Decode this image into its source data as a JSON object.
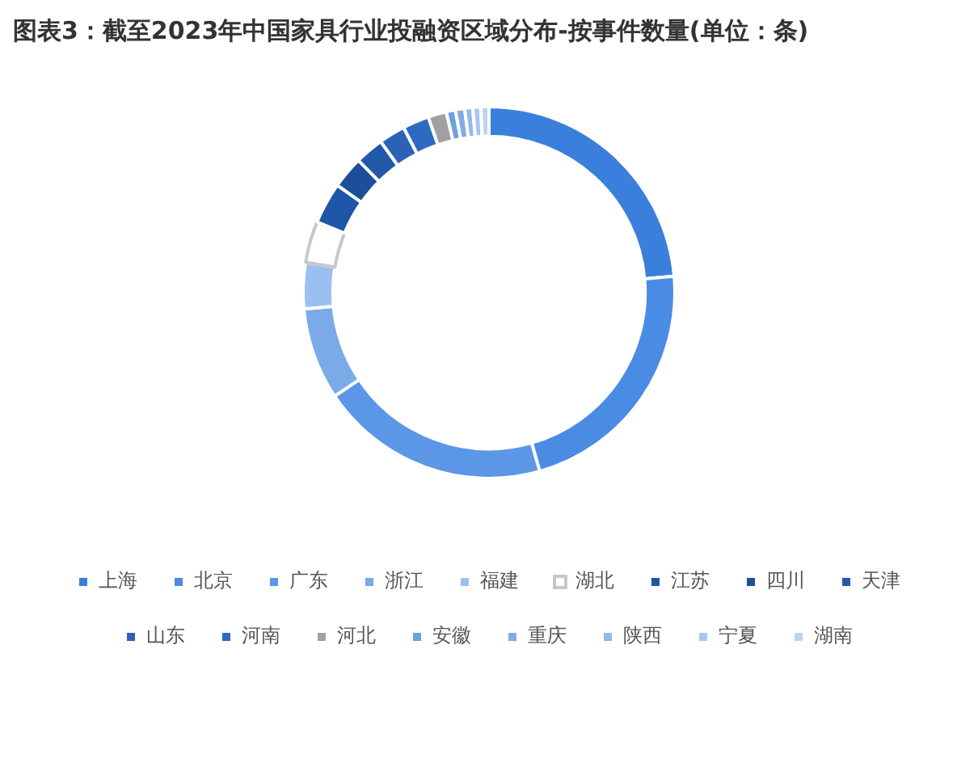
{
  "chart_data": {
    "type": "donut",
    "title": "图表3：截至2023年中国家具行业投融资区域分布-按事件数量(单位：条)",
    "categories": [
      "上海",
      "北京",
      "广东",
      "浙江",
      "福建",
      "湖北",
      "江苏",
      "四川",
      "天津",
      "山东",
      "河南",
      "河北",
      "安徽",
      "重庆",
      "陕西",
      "宁夏",
      "湖南"
    ],
    "values": [
      23.6,
      22,
      20,
      8,
      4,
      3.6,
      3.6,
      2.8,
      2.5,
      2.3,
      2.3,
      1.6,
      0.8,
      0.8,
      0.7,
      0.7,
      0.7
    ],
    "colors": [
      "#3b7fdc",
      "#4a8be4",
      "#5b97e6",
      "#7aaae8",
      "#9bbff0",
      "#ffffff",
      "#1f55a8",
      "#1c4f9a",
      "#2258a8",
      "#2a62b8",
      "#2e6ac4",
      "#a0a0a0",
      "#6ea0e0",
      "#80ace6",
      "#93b8ea",
      "#a8c6ef",
      "#bcd4f3"
    ],
    "legend": "bottom"
  }
}
